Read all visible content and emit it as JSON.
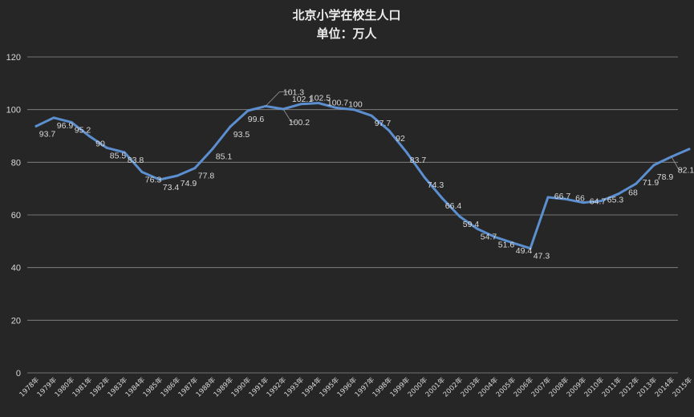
{
  "chart_data": {
    "type": "line",
    "title": "北京小学在校生人口",
    "subtitle": "单位：万人",
    "categories": [
      "1978年",
      "1979年",
      "1980年",
      "1981年",
      "1982年",
      "1983年",
      "1984年",
      "1985年",
      "1986年",
      "1987年",
      "1988年",
      "1989年",
      "1990年",
      "1991年",
      "1992年",
      "1993年",
      "1994年",
      "1995年",
      "1996年",
      "1997年",
      "1998年",
      "1999年",
      "2000年",
      "2001年",
      "2002年",
      "2003年",
      "2004年",
      "2005年",
      "2006年",
      "2007年",
      "2008年",
      "2009年",
      "2010年",
      "2011年",
      "2012年",
      "2013年",
      "2014年",
      "2015年"
    ],
    "series": [
      {
        "values": [
          93.7,
          96.9,
          95.2,
          90,
          85.5,
          83.8,
          76.3,
          73.4,
          74.9,
          77.8,
          85.1,
          93.5,
          99.6,
          101.3,
          100.2,
          102.1,
          102.5,
          100.7,
          100,
          97.7,
          92,
          83.7,
          74.3,
          66.4,
          59.4,
          54.7,
          51.6,
          49.4,
          47.3,
          66.7,
          66,
          64.7,
          65.3,
          68,
          71.9,
          78.9,
          82.1,
          85
        ],
        "labels": [
          "93.7",
          "96.9",
          "95.2",
          "90",
          "85.5",
          "83.8",
          "76.3",
          "73.4",
          "74.9",
          "77.8",
          "85.1",
          "93.5",
          "99.6",
          "101.3",
          "100.2",
          "102.1",
          "102.5",
          "100.7",
          "100",
          "97.7",
          "92",
          "83.7",
          "74.3",
          "66.4",
          "59.4",
          "54.7",
          "51.6",
          "49.4",
          "47.3",
          "66.7",
          "66",
          "64.7",
          "65.3",
          "68",
          "71.9",
          "78.9",
          "82.1",
          "85"
        ]
      }
    ],
    "yticks": [
      "0",
      "20",
      "40",
      "60",
      "80",
      "100",
      "120"
    ],
    "ylim": [
      0,
      120
    ],
    "grid": true,
    "legend": "none",
    "colors": {
      "line": "#5b8fd0",
      "background": "#262626",
      "grid": "#8c8c8c",
      "text": "#d9d9d9"
    }
  }
}
